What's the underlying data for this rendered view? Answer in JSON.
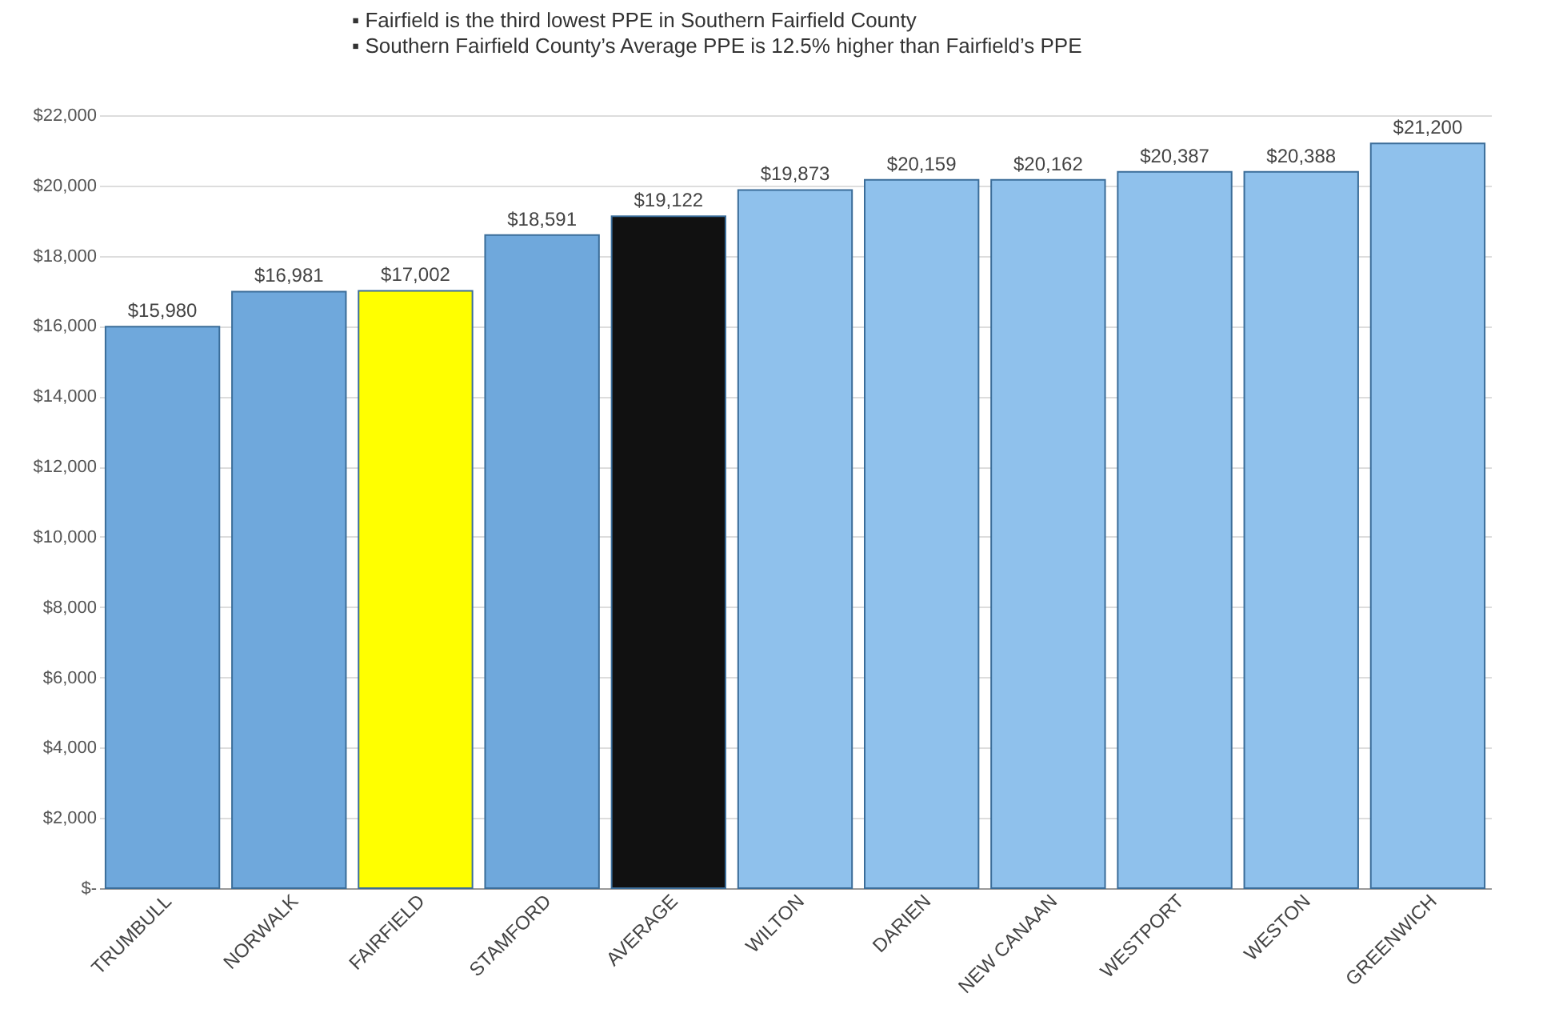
{
  "chart_data": {
    "type": "bar",
    "annotations": [
      "▪ Fairfield is the third lowest PPE in Southern Fairfield County",
      "▪ Southern Fairfield County’s Average PPE is 12.5% higher than Fairfield’s PPE"
    ],
    "categories": [
      "TRUMBULL",
      "NORWALK",
      "FAIRFIELD",
      "STAMFORD",
      "AVERAGE",
      "WILTON",
      "DARIEN",
      "NEW CANAAN",
      "WESTPORT",
      "WESTON",
      "GREENWICH"
    ],
    "values": [
      15980,
      16981,
      17002,
      18591,
      19122,
      19873,
      20159,
      20162,
      20387,
      20388,
      21200
    ],
    "colors": [
      "#6fa8dc",
      "#6fa8dc",
      "#ffff00",
      "#6fa8dc",
      "#111111",
      "#8fc1ec",
      "#8fc1ec",
      "#8fc1ec",
      "#8fc1ec",
      "#8fc1ec",
      "#8fc1ec"
    ],
    "value_labels": [
      "$15,980",
      "$16,981",
      "$17,002",
      "$18,591",
      "$19,122",
      "$19,873",
      "$20,159",
      "$20,162",
      "$20,387",
      "$20,388",
      "$21,200"
    ],
    "ylim": [
      0,
      22000
    ],
    "yticks": [
      {
        "value": 0,
        "label": "$-"
      },
      {
        "value": 2000,
        "label": "$2,000"
      },
      {
        "value": 4000,
        "label": "$4,000"
      },
      {
        "value": 6000,
        "label": "$6,000"
      },
      {
        "value": 8000,
        "label": "$8,000"
      },
      {
        "value": 10000,
        "label": "$10,000"
      },
      {
        "value": 12000,
        "label": "$12,000"
      },
      {
        "value": 14000,
        "label": "$14,000"
      },
      {
        "value": 16000,
        "label": "$16,000"
      },
      {
        "value": 18000,
        "label": "$18,000"
      },
      {
        "value": 20000,
        "label": "$20,000"
      },
      {
        "value": 22000,
        "label": "$22,000"
      }
    ],
    "grid": "y"
  }
}
